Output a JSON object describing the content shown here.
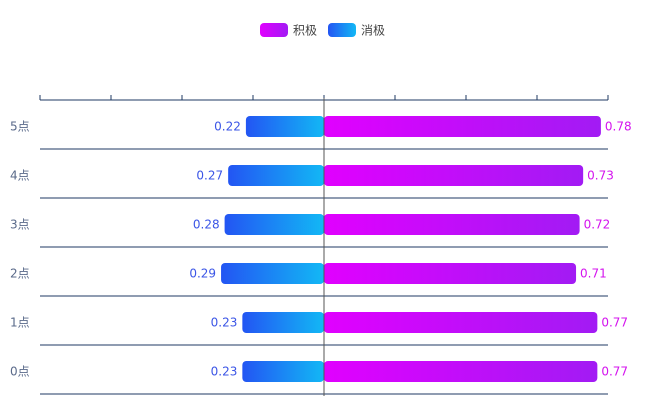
{
  "chart_data": {
    "type": "bar",
    "orientation": "horizontal-diverging",
    "categories": [
      "5点",
      "4点",
      "3点",
      "2点",
      "1点",
      "0点"
    ],
    "series": [
      {
        "name": "积极",
        "values": [
          0.78,
          0.73,
          0.72,
          0.71,
          0.77,
          0.77
        ],
        "value_labels": [
          "0.78",
          "0.73",
          "0.72",
          "0.71",
          "0.77",
          "0.77"
        ],
        "color_start": "#e100ff",
        "color_end": "#a21bf4"
      },
      {
        "name": "消极",
        "values": [
          0.22,
          0.27,
          0.28,
          0.29,
          0.23,
          0.23
        ],
        "value_labels": [
          "0.22",
          "0.27",
          "0.28",
          "0.29",
          "0.23",
          "0.23"
        ],
        "color_start": "#2355f3",
        "color_end": "#12b8f5"
      }
    ],
    "xlim": [
      -0.8,
      0.8
    ],
    "legend_position": "top-center",
    "grid": false,
    "colors": {
      "axis": "#1f3a63",
      "center_line": "#555555",
      "category_text": "#5a6a8a",
      "positive_label": "#d414ee",
      "negative_label": "#3b55e6"
    }
  }
}
